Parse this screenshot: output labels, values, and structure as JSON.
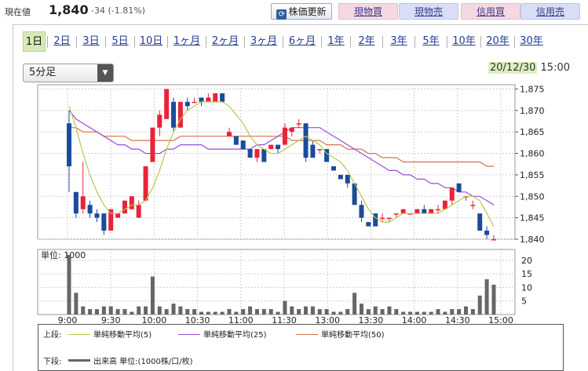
{
  "quote": {
    "label": "現在値",
    "price": "1,840",
    "change": "-34 (-1.81%)"
  },
  "toolbar": {
    "refresh_label": "株価更新",
    "refresh_icon": "refresh-icon",
    "cash_buy": "現物買",
    "cash_sell": "現物売",
    "margin_buy": "信用買",
    "margin_sell": "信用売"
  },
  "tabs": [
    "1日",
    "2日",
    "3日",
    "5日",
    "10日",
    "1ヶ月",
    "2ヶ月",
    "3ヶ月",
    "6ヶ月",
    "1年",
    "2年",
    "3年",
    "5年",
    "10年",
    "20年",
    "30年"
  ],
  "active_tab": "1日",
  "interval_select": {
    "value": "5分足",
    "icon": "dropdown-arrow-icon"
  },
  "datetime": {
    "date": "20/12/30",
    "time": "15:00"
  },
  "colors": {
    "up": "#e8243a",
    "down": "#1b4b9b",
    "ma5": "#b5c94a",
    "ma25": "#9b4ad9",
    "ma50": "#d9704a",
    "volume": "#666666"
  },
  "chart_data": {
    "type": "candlestick",
    "price_axis": {
      "ticks": [
        1840,
        1845,
        1850,
        1855,
        1860,
        1865,
        1870,
        1875
      ],
      "ylim": [
        1840,
        1876
      ]
    },
    "volume_axis": {
      "unit_label": "単位: 1000",
      "ticks": [
        5,
        10,
        15,
        20
      ],
      "ylim": [
        0,
        24
      ]
    },
    "x_ticks": [
      "9:00",
      "9:30",
      "10:00",
      "10:30",
      "11:00",
      "11:30",
      "13:00",
      "13:30",
      "14:00",
      "14:30",
      "15:00"
    ],
    "candles": [
      [
        1867,
        1870,
        1851,
        1857
      ],
      [
        1851,
        1851,
        1845,
        1846
      ],
      [
        1847,
        1858,
        1846,
        1850
      ],
      [
        1848,
        1849,
        1845,
        1846
      ],
      [
        1846,
        1847,
        1844,
        1845
      ],
      [
        1846,
        1846,
        1841,
        1842
      ],
      [
        1842,
        1847,
        1842,
        1847
      ],
      [
        1845,
        1846,
        1845,
        1846
      ],
      [
        1846,
        1849,
        1846,
        1849
      ],
      [
        1847,
        1850,
        1847,
        1850
      ],
      [
        1845,
        1849,
        1845,
        1848
      ],
      [
        1849,
        1857,
        1849,
        1857
      ],
      [
        1858,
        1866,
        1858,
        1866
      ],
      [
        1866,
        1870,
        1864,
        1869
      ],
      [
        1868,
        1875,
        1868,
        1875
      ],
      [
        1872,
        1873,
        1865,
        1866
      ],
      [
        1866,
        1872,
        1866,
        1872
      ],
      [
        1872,
        1873,
        1870,
        1871
      ],
      [
        1872,
        1873,
        1872,
        1872
      ],
      [
        1873,
        1873,
        1871,
        1872
      ],
      [
        1872,
        1874,
        1872,
        1873
      ],
      [
        1872,
        1874,
        1872,
        1874
      ],
      [
        1874,
        1874,
        1872,
        1872
      ],
      [
        1864,
        1866,
        1864,
        1865
      ],
      [
        1864,
        1864,
        1862,
        1862
      ],
      [
        1863,
        1863,
        1861,
        1861
      ],
      [
        1861,
        1861,
        1859,
        1859
      ],
      [
        1859,
        1861,
        1858,
        1861
      ],
      [
        1861,
        1861,
        1858,
        1858
      ],
      [
        1861,
        1862,
        1861,
        1862
      ],
      [
        1862,
        1862,
        1860,
        1861
      ],
      [
        1862,
        1867,
        1862,
        1866
      ],
      [
        1865,
        1866,
        1864,
        1866
      ],
      [
        1867,
        1868,
        1866,
        1867
      ],
      [
        1867,
        1867,
        1858,
        1859
      ],
      [
        1862,
        1863,
        1859,
        1859
      ],
      [
        1861,
        1861,
        1860,
        1861
      ],
      [
        1861,
        1861,
        1858,
        1858
      ],
      [
        1857,
        1857,
        1856,
        1856
      ],
      [
        1855,
        1855,
        1854,
        1854
      ],
      [
        1855,
        1855,
        1852,
        1853
      ],
      [
        1853,
        1853,
        1848,
        1848
      ],
      [
        1848,
        1849,
        1844,
        1845
      ],
      [
        1844,
        1844,
        1843,
        1843
      ],
      [
        1846,
        1846,
        1843,
        1843
      ],
      [
        1845,
        1846,
        1844,
        1845
      ],
      [
        1845,
        1845,
        1844,
        1845
      ],
      [
        1846,
        1846,
        1845,
        1846
      ],
      [
        1846,
        1847,
        1846,
        1847
      ],
      [
        1846,
        1846,
        1846,
        1846
      ],
      [
        1846,
        1847,
        1846,
        1847
      ],
      [
        1847,
        1848,
        1846,
        1846
      ],
      [
        1846,
        1847,
        1846,
        1847
      ],
      [
        1847,
        1848,
        1846,
        1847
      ],
      [
        1847,
        1849,
        1847,
        1849
      ],
      [
        1849,
        1852,
        1848,
        1852
      ],
      [
        1853,
        1853,
        1851,
        1851
      ],
      [
        1850,
        1850,
        1849,
        1850
      ],
      [
        1848,
        1849,
        1847,
        1848
      ],
      [
        1846,
        1846,
        1842,
        1842
      ],
      [
        1842,
        1843,
        1840,
        1841
      ],
      [
        1840,
        1841,
        1840,
        1840
      ]
    ],
    "volume": [
      22,
      8,
      3,
      2,
      2,
      3,
      3,
      2,
      2,
      1,
      3,
      3,
      14,
      3,
      2,
      4,
      3,
      2,
      2,
      1,
      1,
      1,
      1,
      2,
      1,
      2,
      3,
      2,
      2,
      2,
      1,
      5,
      3,
      2,
      3,
      3,
      2,
      2,
      1,
      1,
      2,
      8,
      4,
      2,
      3,
      2,
      3,
      2,
      1,
      1,
      1,
      1,
      1,
      2,
      1,
      2,
      2,
      3,
      2,
      7,
      13,
      11
    ],
    "ma5": [
      1871,
      1866,
      1860,
      1855,
      1851,
      1848,
      1846,
      1846,
      1847,
      1848,
      1848,
      1849,
      1852,
      1856,
      1861,
      1865,
      1868,
      1870,
      1871,
      1872,
      1872,
      1872,
      1872,
      1871,
      1869,
      1867,
      1864,
      1862,
      1861,
      1860,
      1860,
      1861,
      1862,
      1863,
      1864,
      1863,
      1862,
      1860,
      1859,
      1858,
      1856,
      1853,
      1850,
      1847,
      1845,
      1844,
      1844,
      1845,
      1846,
      1846,
      1846,
      1846,
      1846,
      1846,
      1847,
      1848,
      1849,
      1850,
      1850,
      1849,
      1846,
      1843
    ],
    "ma25": [
      1870,
      1868,
      1867,
      1866,
      1865,
      1864,
      1863,
      1862,
      1862,
      1861,
      1861,
      1860,
      1860,
      1860,
      1861,
      1861,
      1862,
      1862,
      1862,
      1862,
      1861,
      1861,
      1861,
      1861,
      1861,
      1861,
      1861,
      1862,
      1862,
      1863,
      1864,
      1865,
      1866,
      1866,
      1866,
      1866,
      1866,
      1865,
      1864,
      1863,
      1862,
      1861,
      1860,
      1859,
      1858,
      1857,
      1856,
      1856,
      1855,
      1855,
      1854,
      1854,
      1853,
      1853,
      1852,
      1852,
      1851,
      1851,
      1850,
      1850,
      1849,
      1848
    ],
    "ma50": [
      1866,
      1866,
      1865,
      1865,
      1865,
      1864,
      1864,
      1864,
      1864,
      1863,
      1863,
      1863,
      1863,
      1863,
      1863,
      1863,
      1864,
      1864,
      1864,
      1864,
      1864,
      1864,
      1864,
      1864,
      1864,
      1864,
      1864,
      1864,
      1864,
      1864,
      1864,
      1864,
      1863,
      1863,
      1863,
      1863,
      1863,
      1862,
      1862,
      1862,
      1861,
      1861,
      1861,
      1860,
      1860,
      1859,
      1859,
      1859,
      1858,
      1858,
      1858,
      1858,
      1858,
      1858,
      1858,
      1858,
      1858,
      1858,
      1858,
      1858,
      1857,
      1857
    ]
  },
  "legend": {
    "upper_label": "上段:",
    "lower_label": "下段:",
    "ma5": "単純移動平均(5)",
    "ma25": "単純移動平均(25)",
    "ma50": "単純移動平均(50)",
    "volume": "出来高 単位:(1000株/口/枚)"
  }
}
